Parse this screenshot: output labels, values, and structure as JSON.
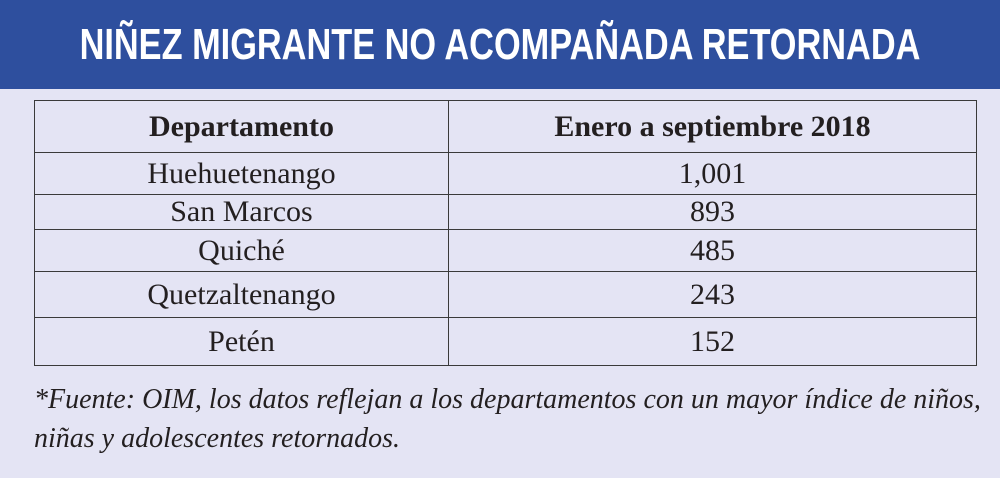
{
  "header": {
    "title": "NIÑEZ MIGRANTE NO ACOMPAÑADA RETORNADA"
  },
  "colors": {
    "header_bg": "#2e4f9e",
    "page_bg": "#e4e4f4",
    "text": "#231f20"
  },
  "chart_data": {
    "type": "table",
    "title": "NIÑEZ MIGRANTE NO ACOMPAÑADA RETORNADA",
    "columns": [
      "Departamento",
      "Enero a septiembre 2018"
    ],
    "rows": [
      [
        "Huehuetenango",
        "1,001"
      ],
      [
        "San Marcos",
        "893"
      ],
      [
        "Quiché",
        "485"
      ],
      [
        "Quetzaltenango",
        "243"
      ],
      [
        "Petén",
        "152"
      ]
    ],
    "categories": [
      "Huehuetenango",
      "San Marcos",
      "Quiché",
      "Quetzaltenango",
      "Petén"
    ],
    "values": [
      1001,
      893,
      485,
      243,
      152
    ]
  },
  "footnote": "*Fuente: OIM, los datos reflejan a los departamentos con un mayor índice de niños, niñas y adolescentes retornados."
}
